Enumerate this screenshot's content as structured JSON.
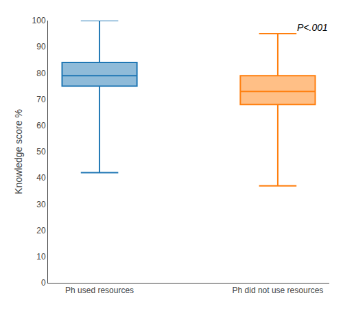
{
  "chart_data": {
    "type": "box",
    "ylabel": "Knowledge score %",
    "categories": [
      "Ph used resources",
      "Ph did not use resources"
    ],
    "whisker_low": [
      42,
      37
    ],
    "q1": [
      75,
      68
    ],
    "median": [
      79,
      73
    ],
    "q3": [
      84,
      79
    ],
    "whisker_high": [
      100,
      95
    ],
    "ylim": [
      0,
      100
    ],
    "yticks": [
      0,
      10,
      20,
      30,
      40,
      50,
      60,
      70,
      80,
      90,
      100
    ],
    "annotation": "P<.001",
    "grid": false
  }
}
